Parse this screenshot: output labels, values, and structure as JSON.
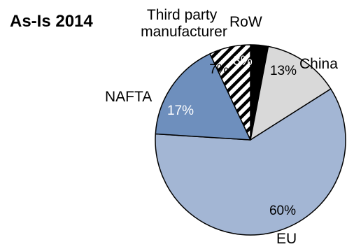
{
  "chart_data": {
    "type": "pie",
    "title": "As-Is 2014",
    "slices": [
      {
        "category": "RoW",
        "value": 3,
        "label": "3%",
        "color": "#000000",
        "label_color": "#ffffff"
      },
      {
        "category": "China",
        "value": 13,
        "label": "13%",
        "color": "#d9d9d9",
        "label_color": "#000000"
      },
      {
        "category": "EU",
        "value": 60,
        "label": "60%",
        "color": "#a3b6d4",
        "label_color": "#000000"
      },
      {
        "category": "NAFTA",
        "value": 17,
        "label": "17%",
        "color": "#6e8fbd",
        "label_color": "#ffffff"
      },
      {
        "category": "Third party manufacturer",
        "value": 7,
        "label": "7%",
        "color": "hatch",
        "label_color": "#000000"
      }
    ]
  }
}
